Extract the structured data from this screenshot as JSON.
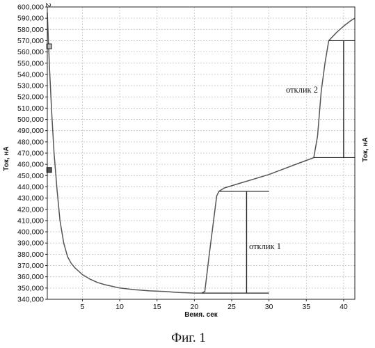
{
  "chart_data": {
    "type": "line",
    "xlabel": "Вемя. сек",
    "ylabel": "Ток, нА",
    "ylabel_right": "Ток, нА",
    "xlim": [
      0.3,
      41.5
    ],
    "ylim": [
      340000,
      600000
    ],
    "x_ticks": [
      5,
      10,
      15,
      20,
      25,
      30,
      35,
      40
    ],
    "y_ticks": [
      {
        "value": 340000,
        "label": "340,000"
      },
      {
        "value": 350000,
        "label": "350,000"
      },
      {
        "value": 360000,
        "label": "360,000"
      },
      {
        "value": 370000,
        "label": "370,000"
      },
      {
        "value": 380000,
        "label": "380,000"
      },
      {
        "value": 390000,
        "label": "390,000"
      },
      {
        "value": 400000,
        "label": "400,000"
      },
      {
        "value": 410000,
        "label": "410,000"
      },
      {
        "value": 420000,
        "label": "420,000"
      },
      {
        "value": 430000,
        "label": "430,000"
      },
      {
        "value": 440000,
        "label": "440,000"
      },
      {
        "value": 450000,
        "label": "450,000"
      },
      {
        "value": 460000,
        "label": "460,000"
      },
      {
        "value": 470000,
        "label": "470,000"
      },
      {
        "value": 480000,
        "label": "480,000"
      },
      {
        "value": 490000,
        "label": "490,000"
      },
      {
        "value": 500000,
        "label": "500,000"
      },
      {
        "value": 510000,
        "label": "510,000"
      },
      {
        "value": 520000,
        "label": "520,000"
      },
      {
        "value": 530000,
        "label": "530,000"
      },
      {
        "value": 540000,
        "label": "540,000"
      },
      {
        "value": 550000,
        "label": "550,000"
      },
      {
        "value": 560000,
        "label": "560,000"
      },
      {
        "value": 570000,
        "label": "570,000"
      },
      {
        "value": 580000,
        "label": "580,000"
      },
      {
        "value": 590000,
        "label": "590,000"
      },
      {
        "value": 600000,
        "label": "600,000"
      }
    ],
    "grid": true,
    "series": [
      {
        "x": [
          0.3,
          0.6,
          0.9,
          1.2,
          1.6,
          2.0,
          2.5,
          3.0,
          3.5,
          4.0,
          5.0,
          6.0,
          7.0,
          8.0,
          10.0,
          12.0,
          14.0,
          16.0,
          18.0,
          20.0,
          21.0,
          21.4,
          22.0,
          23.0,
          23.3,
          24.0,
          26.0,
          28.0,
          30.0,
          32.0,
          34.0,
          36.0,
          36.5,
          37.0,
          37.5,
          38.0,
          39.0,
          40.0,
          41.0,
          41.5
        ],
        "y": [
          595000,
          545000,
          505000,
          470000,
          438000,
          410000,
          390000,
          378000,
          372000,
          368000,
          362000,
          358000,
          355000,
          353000,
          350000,
          348500,
          347500,
          347000,
          346000,
          345500,
          345500,
          347000,
          380000,
          432000,
          436000,
          439000,
          443000,
          447000,
          451000,
          456000,
          461000,
          466000,
          485000,
          525000,
          550000,
          570000,
          577000,
          583000,
          588000,
          590000
        ]
      }
    ],
    "markers": [
      {
        "x": 0.55,
        "y": 565000
      },
      {
        "x": 0.55,
        "y": 455000
      }
    ],
    "response_1": {
      "label": "отклик 1",
      "x": 27,
      "y_low": 345500,
      "y_high": 436000,
      "baseline_x": [
        21.0,
        30.0
      ],
      "top_x": [
        23.3,
        30.0
      ]
    },
    "response_2": {
      "label": "отклик 2",
      "x": 40,
      "y_low": 466000,
      "y_high": 570000,
      "baseline_x": [
        36.0,
        41.5
      ],
      "top_x": [
        38.0,
        41.5
      ]
    },
    "corner_label": "2"
  },
  "caption": "Фиг. 1"
}
